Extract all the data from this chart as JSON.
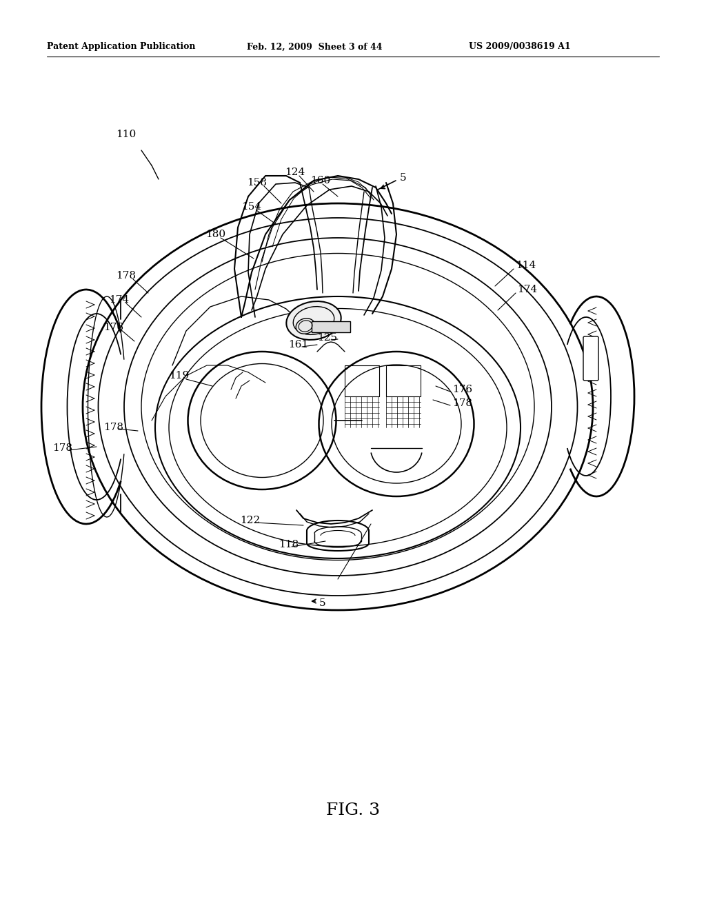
{
  "bg_color": "#ffffff",
  "header_left": "Patent Application Publication",
  "header_mid": "Feb. 12, 2009  Sheet 3 of 44",
  "header_right": "US 2009/0038619 A1",
  "fig_label": "FIG. 3",
  "line_color": "#000000",
  "page_width": 1.0,
  "page_height": 1.0
}
